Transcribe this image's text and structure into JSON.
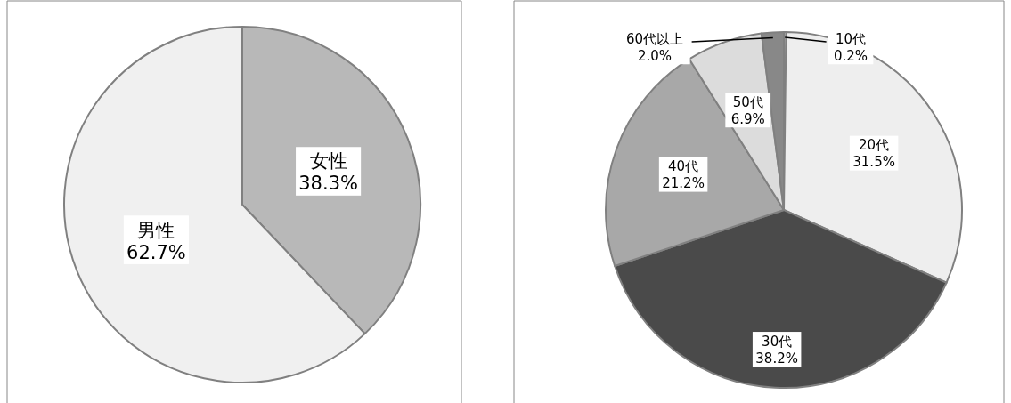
{
  "chart_data": [
    {
      "type": "pie",
      "categories": [
        "女性",
        "男性"
      ],
      "values": [
        38.3,
        62.7
      ],
      "colors": [
        "#b8b8b8",
        "#f0f0f0"
      ],
      "value_labels": [
        "38.3%",
        "62.7%"
      ]
    },
    {
      "type": "pie",
      "categories": [
        "10代",
        "20代",
        "30代",
        "40代",
        "50代",
        "60代以上"
      ],
      "values": [
        0.2,
        31.5,
        38.2,
        21.2,
        6.9,
        2.0
      ],
      "colors": [
        "#ffffff",
        "#eeeeee",
        "#4a4a4a",
        "#a8a8a8",
        "#dcdcdc",
        "#888888"
      ],
      "value_labels": [
        "0.2%",
        "31.5%",
        "38.2%",
        "21.2%",
        "6.9%",
        "2.0%"
      ]
    }
  ]
}
